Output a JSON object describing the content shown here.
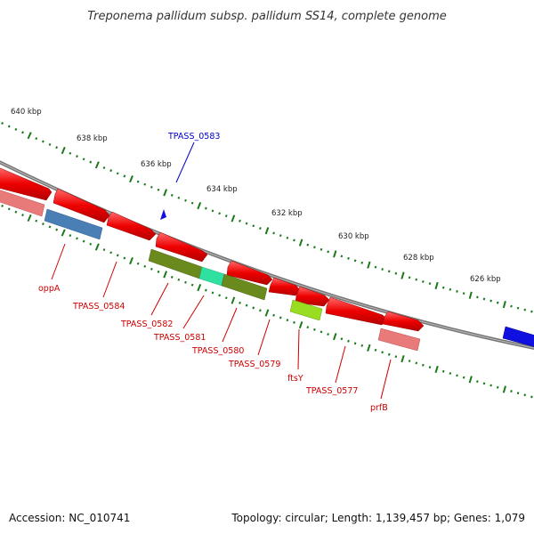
{
  "title": "Treponema pallidum subsp. pallidum SS14, complete genome",
  "footer": {
    "accession": "Accession: NC_010741",
    "summary": "Topology: circular; Length: 1,139,457 bp; Genes: 1,079"
  },
  "ruler_ticks": [
    {
      "label": "640 kbp"
    },
    {
      "label": "638 kbp"
    },
    {
      "label": "636 kbp"
    },
    {
      "label": "634 kbp"
    },
    {
      "label": "632 kbp"
    },
    {
      "label": "630 kbp"
    },
    {
      "label": "628 kbp"
    },
    {
      "label": "626 kbp"
    }
  ],
  "gene_labels": [
    {
      "text": "TPASS_0583",
      "color": "#0000cc"
    },
    {
      "text": "oppA",
      "color": "#cc0000"
    },
    {
      "text": "TPASS_0584",
      "color": "#cc0000"
    },
    {
      "text": "TPASS_0582",
      "color": "#cc0000"
    },
    {
      "text": "TPASS_0581",
      "color": "#cc0000"
    },
    {
      "text": "TPASS_0580",
      "color": "#cc0000"
    },
    {
      "text": "TPASS_0579",
      "color": "#cc0000"
    },
    {
      "text": "ftsY",
      "color": "#cc0000"
    },
    {
      "text": "TPASS_0577",
      "color": "#cc0000"
    },
    {
      "text": "prfB",
      "color": "#cc0000"
    }
  ],
  "colors": {
    "backbone": "#777777",
    "cds_forward": "#ee0000",
    "cds_reverse": "#ee0000",
    "pseudogene": "#e97a7a",
    "steelblue_feature": "#4a7fb5",
    "olive_feature": "#6b8a1e",
    "teal_feature": "#2fe0a0",
    "lime_feature": "#99dd22",
    "blue_feature": "#1010e0",
    "tick_color": "#1a7a1a"
  }
}
